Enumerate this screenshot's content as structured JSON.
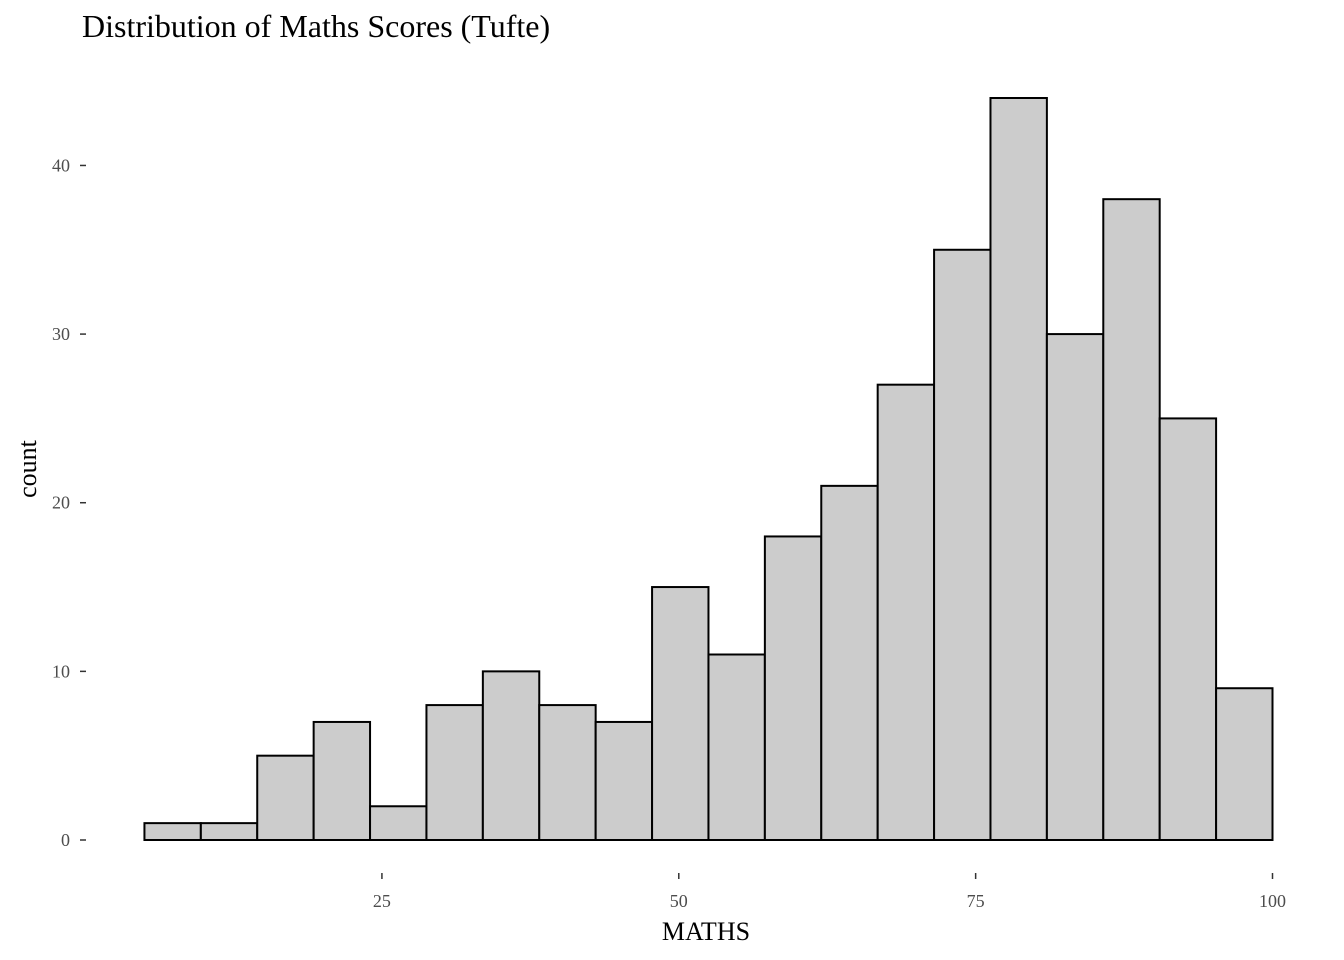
{
  "chart_data": {
    "type": "bar",
    "title": "Distribution of Maths Scores (Tufte)",
    "xlabel": "MATHS",
    "ylabel": "count",
    "x_ticks": [
      25,
      50,
      75,
      100
    ],
    "y_ticks": [
      0,
      10,
      20,
      30,
      40
    ],
    "xlim": [
      4.5,
      100
    ],
    "ylim": [
      0,
      44
    ],
    "grid": false,
    "bin_width": 4.75,
    "bins": [
      {
        "start": 4.5,
        "end": 9.25,
        "count": 1
      },
      {
        "start": 9.25,
        "end": 14.0,
        "count": 1
      },
      {
        "start": 14.0,
        "end": 18.75,
        "count": 5
      },
      {
        "start": 18.75,
        "end": 23.5,
        "count": 7
      },
      {
        "start": 23.5,
        "end": 28.25,
        "count": 2
      },
      {
        "start": 28.25,
        "end": 33.0,
        "count": 8
      },
      {
        "start": 33.0,
        "end": 37.75,
        "count": 10
      },
      {
        "start": 37.75,
        "end": 42.5,
        "count": 8
      },
      {
        "start": 42.5,
        "end": 47.25,
        "count": 7
      },
      {
        "start": 47.25,
        "end": 52.0,
        "count": 15
      },
      {
        "start": 52.0,
        "end": 56.75,
        "count": 11
      },
      {
        "start": 56.75,
        "end": 61.5,
        "count": 18
      },
      {
        "start": 61.5,
        "end": 66.25,
        "count": 21
      },
      {
        "start": 66.25,
        "end": 71.0,
        "count": 27
      },
      {
        "start": 71.0,
        "end": 75.75,
        "count": 35
      },
      {
        "start": 75.75,
        "end": 80.5,
        "count": 44
      },
      {
        "start": 80.5,
        "end": 85.25,
        "count": 30
      },
      {
        "start": 85.25,
        "end": 90.0,
        "count": 38
      },
      {
        "start": 90.0,
        "end": 94.75,
        "count": 25
      },
      {
        "start": 94.75,
        "end": 99.5,
        "count": 9
      }
    ],
    "colors": {
      "fill": "#cccccc",
      "stroke": "#000000",
      "tick_text": "#4d4d4d"
    }
  }
}
